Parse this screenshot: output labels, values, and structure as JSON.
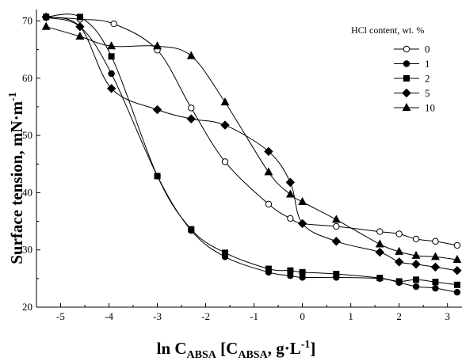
{
  "chart_data": {
    "type": "line",
    "xlabel": {
      "prefix": "ln C",
      "sub1": "ABSA",
      "middle": " [C",
      "sub2": "ABSA",
      "suffix": ", g·L",
      "sup": "-1",
      "end": "]"
    },
    "ylabel": {
      "main": "Surface tension, mN·m",
      "sup": "-1"
    },
    "xlim": [
      -5.5,
      3.3
    ],
    "ylim": [
      20,
      72
    ],
    "xticks": [
      -5,
      -4,
      -3,
      -2,
      -1,
      0,
      1,
      2,
      3
    ],
    "yticks": [
      20,
      30,
      40,
      50,
      60,
      70
    ],
    "x_tick_labels": [
      "-5",
      "-4",
      "-3",
      "-2",
      "-1",
      "0",
      "1",
      "2",
      "3"
    ],
    "y_tick_labels": [
      "20",
      "30",
      "40",
      "50",
      "60",
      "70"
    ],
    "grid": false,
    "legend": {
      "title": "HCl content, wt. %",
      "placement": "top-right"
    },
    "series": [
      {
        "name": "0",
        "marker": "open-circle",
        "points": [
          [
            -5.3,
            70.7
          ],
          [
            -4.6,
            70.3
          ],
          [
            -3.9,
            69.5
          ],
          [
            -3.0,
            64.9
          ],
          [
            -2.3,
            54.8
          ],
          [
            -1.6,
            45.4
          ],
          [
            -0.7,
            38.0
          ],
          [
            -0.25,
            35.5
          ],
          [
            0.0,
            34.6
          ],
          [
            0.7,
            34.1
          ],
          [
            1.6,
            33.2
          ],
          [
            2.0,
            32.8
          ],
          [
            2.35,
            31.9
          ],
          [
            2.75,
            31.5
          ],
          [
            3.2,
            30.8
          ]
        ]
      },
      {
        "name": "1",
        "marker": "filled-circle",
        "points": [
          [
            -5.3,
            70.6
          ],
          [
            -4.6,
            69.0
          ],
          [
            -3.95,
            60.8
          ],
          [
            -3.0,
            42.9
          ],
          [
            -2.3,
            33.4
          ],
          [
            -1.6,
            28.8
          ],
          [
            -0.7,
            26.1
          ],
          [
            -0.25,
            25.5
          ],
          [
            0.0,
            25.2
          ],
          [
            0.7,
            25.2
          ],
          [
            1.6,
            25.0
          ],
          [
            2.0,
            24.3
          ],
          [
            2.35,
            23.6
          ],
          [
            2.75,
            23.3
          ],
          [
            3.2,
            22.6
          ]
        ]
      },
      {
        "name": "2",
        "marker": "filled-square",
        "points": [
          [
            -5.3,
            70.7
          ],
          [
            -4.6,
            70.7
          ],
          [
            -3.95,
            63.8
          ],
          [
            -3.0,
            42.9
          ],
          [
            -2.3,
            33.6
          ],
          [
            -1.6,
            29.5
          ],
          [
            -0.7,
            26.7
          ],
          [
            -0.25,
            26.4
          ],
          [
            0.0,
            26.1
          ],
          [
            0.7,
            25.8
          ],
          [
            1.6,
            25.1
          ],
          [
            2.0,
            24.5
          ],
          [
            2.35,
            24.8
          ],
          [
            2.75,
            24.4
          ],
          [
            3.2,
            23.9
          ]
        ]
      },
      {
        "name": "5",
        "marker": "filled-diamond",
        "points": [
          [
            -5.3,
            70.7
          ],
          [
            -4.6,
            69.0
          ],
          [
            -3.95,
            58.2
          ],
          [
            -3.0,
            54.5
          ],
          [
            -2.3,
            52.9
          ],
          [
            -1.6,
            51.8
          ],
          [
            -0.7,
            47.2
          ],
          [
            -0.25,
            41.8
          ],
          [
            0.0,
            34.6
          ],
          [
            0.7,
            31.5
          ],
          [
            1.6,
            29.6
          ],
          [
            2.0,
            27.9
          ],
          [
            2.35,
            27.5
          ],
          [
            2.75,
            27.0
          ],
          [
            3.2,
            26.4
          ]
        ]
      },
      {
        "name": "10",
        "marker": "filled-triangle",
        "points": [
          [
            -5.3,
            69.0
          ],
          [
            -4.6,
            67.3
          ],
          [
            -3.95,
            65.6
          ],
          [
            -3.0,
            65.6
          ],
          [
            -2.3,
            63.9
          ],
          [
            -1.6,
            55.8
          ],
          [
            -0.7,
            43.6
          ],
          [
            -0.25,
            39.7
          ],
          [
            0.0,
            38.4
          ],
          [
            0.7,
            35.3
          ],
          [
            1.6,
            31.0
          ],
          [
            2.0,
            29.7
          ],
          [
            2.35,
            29.0
          ],
          [
            2.75,
            28.8
          ],
          [
            3.2,
            28.3
          ]
        ]
      }
    ]
  }
}
